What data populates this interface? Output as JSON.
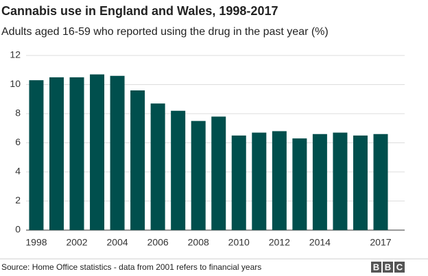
{
  "chart_data": {
    "type": "bar",
    "title": "Cannabis use in England and Wales, 1998-2017",
    "subtitle": "Adults aged 16-59 who reported using the drug in the past year (%)",
    "source": "Source: Home Office statistics - data from 2001 refers to financial years",
    "logo": [
      "B",
      "B",
      "C"
    ],
    "categories": [
      "1998",
      null,
      "2002",
      null,
      "2004",
      null,
      "2006",
      null,
      "2008",
      null,
      "2010",
      null,
      "2012",
      null,
      "2014",
      null,
      null,
      "2017"
    ],
    "values": [
      10.3,
      10.5,
      10.5,
      10.7,
      10.6,
      9.6,
      8.7,
      8.2,
      7.5,
      7.8,
      6.5,
      6.7,
      6.8,
      6.3,
      6.6,
      6.7,
      6.5,
      6.6
    ],
    "color": "#004f4d",
    "ylim": [
      0,
      12
    ],
    "yticks": [
      0,
      2,
      4,
      6,
      8,
      10,
      12
    ],
    "grid": true
  }
}
